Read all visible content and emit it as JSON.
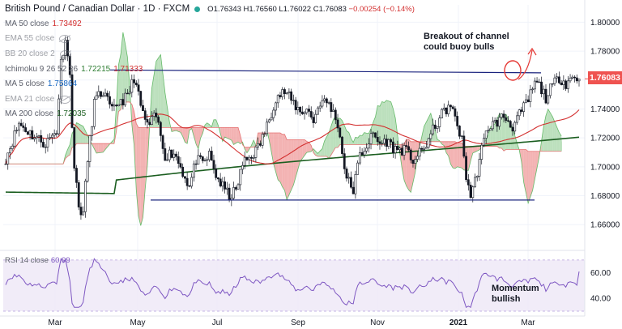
{
  "header": {
    "title": "British Pound / Canadian Dollar · 1D · FXCM",
    "ohlc": [
      {
        "label": "O",
        "value": "1.76343"
      },
      {
        "label": "H",
        "value": "1.76560"
      },
      {
        "label": "L",
        "value": "1.76022"
      },
      {
        "label": "C",
        "value": "1.76083"
      }
    ],
    "change": "−0.00254 (−0.14%)"
  },
  "legend": [
    {
      "id": "ma50",
      "label": "MA 50 close",
      "values": [
        "1.73492"
      ],
      "color": "#d32f2f",
      "hidden": false
    },
    {
      "id": "ema55",
      "label": "EMA 55 close",
      "values": [],
      "color": "#9e9e9e",
      "hidden": true
    },
    {
      "id": "bb20",
      "label": "BB 20 close 2",
      "values": [],
      "color": "#9e9e9e",
      "hidden": true
    },
    {
      "id": "ichimoku",
      "label": "Ichimoku 9 26 52 26",
      "values": [
        "1.72215",
        "1.71333"
      ],
      "colors": [
        "#2e7d32",
        "#d32f2f"
      ],
      "hidden": false
    },
    {
      "id": "ma5",
      "label": "MA 5 close",
      "values": [
        "1.75864"
      ],
      "color": "#1565c0",
      "hidden": false
    },
    {
      "id": "ema21",
      "label": "EMA 21 close",
      "values": [],
      "color": "#9e9e9e",
      "hidden": true
    },
    {
      "id": "ma200",
      "label": "MA 200 close",
      "values": [
        "1.72035"
      ],
      "color": "#1b5e20",
      "hidden": false
    }
  ],
  "annotations": {
    "breakout": "Breakout of channel\ncould buoy bulls",
    "momentum": "Momentum\nbullish"
  },
  "rsi": {
    "label": "RSI 14 close",
    "value": "60.99"
  },
  "last_price": "1.76083",
  "colors": {
    "up": "#26a69a",
    "down": "#ef5350",
    "candle": "#131722",
    "channel": "#1a237e",
    "ma50": "#d32f2f",
    "ma200": "#1b5e20",
    "cloud_bull": "#a5d6a7",
    "cloud_bear": "#ef9a9a",
    "rsi": "#7e57c2",
    "arrow": "#e53935"
  },
  "chart_data": {
    "type": "candlestick",
    "symbol": "GBPCAD",
    "timeframe": "1D",
    "x_ticks": [
      "Mar",
      "May",
      "Jul",
      "Sep",
      "Nov",
      "2021",
      "Mar"
    ],
    "y_ticks": [
      "1.80000",
      "1.78000",
      "1.76000",
      "1.74000",
      "1.72000",
      "1.70000",
      "1.68000",
      "1.66000"
    ],
    "ylim": [
      1.645,
      1.812
    ],
    "channel": {
      "upper": [
        1.767,
        1.765
      ],
      "lower": [
        1.677,
        1.677
      ]
    },
    "rsi_ticks": [
      "60.00",
      "40.00"
    ],
    "rsi_ylim": [
      30,
      75
    ],
    "rsi_bands": [
      70,
      30
    ],
    "key_points": [
      {
        "date": "Feb",
        "close": 1.72
      },
      {
        "date": "Mar (spike)",
        "close": 1.795
      },
      {
        "date": "Mar low",
        "close": 1.66
      },
      {
        "date": "Apr",
        "close": 1.75
      },
      {
        "date": "Jun",
        "close": 1.685
      },
      {
        "date": "Aug",
        "close": 1.76
      },
      {
        "date": "Sep",
        "close": 1.69
      },
      {
        "date": "Oct",
        "close": 1.72
      },
      {
        "date": "Dec",
        "close": 1.68
      },
      {
        "date": "Feb 2021",
        "close": 1.761
      }
    ]
  }
}
